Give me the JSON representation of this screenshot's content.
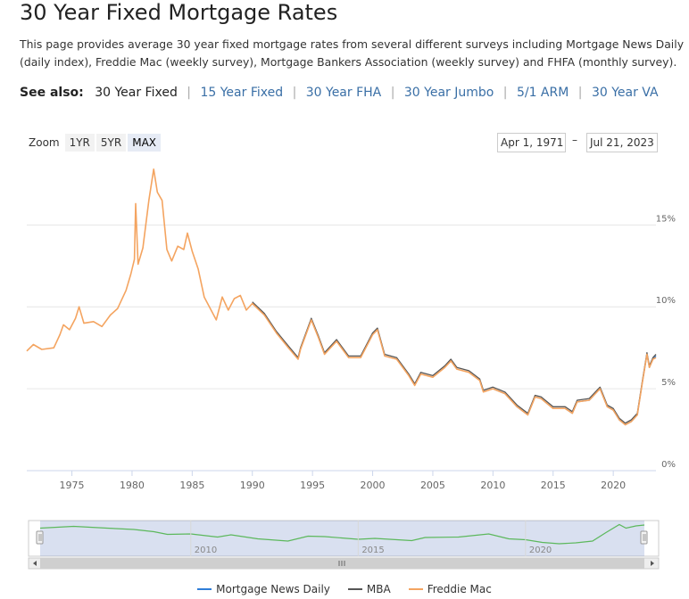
{
  "page": {
    "title": "30 Year Fixed Mortgage Rates",
    "description": "This page provides average 30 year fixed mortgage rates from several different surveys including Mortgage News Daily (daily index), Freddie Mac (weekly survey), Mortgage Bankers Association (weekly survey) and FHFA (monthly survey)."
  },
  "see_also": {
    "label": "See also:",
    "current": "30 Year Fixed",
    "links": [
      "15 Year Fixed",
      "30 Year FHA",
      "30 Year Jumbo",
      "5/1 ARM",
      "30 Year VA"
    ]
  },
  "zoom": {
    "label": "Zoom",
    "buttons": [
      "1YR",
      "5YR",
      "MAX"
    ],
    "active": "MAX"
  },
  "range": {
    "from": "Apr 1, 1971",
    "to": "Jul 21, 2023"
  },
  "colors": {
    "mnd": "#2f7ed8",
    "mba": "#555555",
    "freddie": "#f4a460",
    "navigator": "#5cb85c",
    "grid": "#e6e6e6"
  },
  "chart_data": {
    "type": "line",
    "x_unit": "year",
    "y_unit": "%",
    "xlim": [
      1971.25,
      2023.55
    ],
    "ylim": [
      0,
      18.5
    ],
    "x_ticks": [
      "1975",
      "1980",
      "1985",
      "1990",
      "1995",
      "2000",
      "2005",
      "2010",
      "2015",
      "2020"
    ],
    "y_ticks": [
      "0%",
      "5%",
      "10%",
      "15%"
    ],
    "grid": true,
    "legend_position": "bottom",
    "series": [
      {
        "name": "Mortgage News Daily",
        "points": [
          [
            2010.0,
            5.0
          ],
          [
            2011.0,
            4.7
          ],
          [
            2012.0,
            3.9
          ],
          [
            2012.9,
            3.4
          ],
          [
            2013.5,
            4.5
          ],
          [
            2014.0,
            4.4
          ],
          [
            2015.0,
            3.8
          ],
          [
            2016.0,
            3.8
          ],
          [
            2016.6,
            3.5
          ],
          [
            2017.0,
            4.2
          ],
          [
            2018.0,
            4.3
          ],
          [
            2018.9,
            5.0
          ],
          [
            2019.5,
            3.9
          ],
          [
            2020.0,
            3.7
          ],
          [
            2020.5,
            3.1
          ],
          [
            2021.0,
            2.8
          ],
          [
            2021.5,
            3.0
          ],
          [
            2022.0,
            3.4
          ],
          [
            2022.4,
            5.3
          ],
          [
            2022.8,
            7.1
          ],
          [
            2023.0,
            6.3
          ],
          [
            2023.3,
            6.8
          ],
          [
            2023.55,
            7.0
          ]
        ]
      },
      {
        "name": "MBA",
        "points": [
          [
            1990.0,
            10.3
          ],
          [
            1991.0,
            9.6
          ],
          [
            1992.0,
            8.5
          ],
          [
            1993.0,
            7.6
          ],
          [
            1993.8,
            6.9
          ],
          [
            1994.0,
            7.5
          ],
          [
            1994.9,
            9.3
          ],
          [
            1995.5,
            8.2
          ],
          [
            1996.0,
            7.2
          ],
          [
            1997.0,
            8.0
          ],
          [
            1998.0,
            7.0
          ],
          [
            1999.0,
            7.0
          ],
          [
            2000.0,
            8.4
          ],
          [
            2000.4,
            8.7
          ],
          [
            2001.0,
            7.1
          ],
          [
            2002.0,
            6.9
          ],
          [
            2003.0,
            5.9
          ],
          [
            2003.5,
            5.3
          ],
          [
            2004.0,
            6.0
          ],
          [
            2005.0,
            5.8
          ],
          [
            2006.0,
            6.4
          ],
          [
            2006.5,
            6.8
          ],
          [
            2007.0,
            6.3
          ],
          [
            2008.0,
            6.1
          ],
          [
            2008.9,
            5.6
          ],
          [
            2009.2,
            4.9
          ],
          [
            2010.0,
            5.1
          ],
          [
            2011.0,
            4.8
          ],
          [
            2012.0,
            4.0
          ],
          [
            2012.9,
            3.5
          ],
          [
            2013.5,
            4.6
          ],
          [
            2014.0,
            4.5
          ],
          [
            2015.0,
            3.9
          ],
          [
            2016.0,
            3.9
          ],
          [
            2016.6,
            3.6
          ],
          [
            2017.0,
            4.3
          ],
          [
            2018.0,
            4.4
          ],
          [
            2018.9,
            5.1
          ],
          [
            2019.5,
            4.0
          ],
          [
            2020.0,
            3.8
          ],
          [
            2020.5,
            3.2
          ],
          [
            2021.0,
            2.9
          ],
          [
            2021.5,
            3.1
          ],
          [
            2022.0,
            3.5
          ],
          [
            2022.4,
            5.4
          ],
          [
            2022.8,
            7.2
          ],
          [
            2023.0,
            6.4
          ],
          [
            2023.3,
            6.9
          ],
          [
            2023.55,
            7.1
          ]
        ]
      },
      {
        "name": "Freddie Mac",
        "points": [
          [
            1971.25,
            7.3
          ],
          [
            1971.8,
            7.7
          ],
          [
            1972.5,
            7.4
          ],
          [
            1973.5,
            7.5
          ],
          [
            1974.0,
            8.3
          ],
          [
            1974.3,
            8.9
          ],
          [
            1974.8,
            8.6
          ],
          [
            1975.3,
            9.3
          ],
          [
            1975.6,
            10.0
          ],
          [
            1976.0,
            9.0
          ],
          [
            1976.8,
            9.1
          ],
          [
            1977.5,
            8.8
          ],
          [
            1978.2,
            9.5
          ],
          [
            1978.8,
            9.9
          ],
          [
            1979.5,
            11.0
          ],
          [
            1979.9,
            12.0
          ],
          [
            1980.2,
            12.9
          ],
          [
            1980.3,
            16.3
          ],
          [
            1980.5,
            12.6
          ],
          [
            1980.9,
            13.6
          ],
          [
            1981.4,
            16.5
          ],
          [
            1981.8,
            18.4
          ],
          [
            1982.1,
            17.0
          ],
          [
            1982.5,
            16.5
          ],
          [
            1982.9,
            13.5
          ],
          [
            1983.3,
            12.8
          ],
          [
            1983.8,
            13.7
          ],
          [
            1984.3,
            13.5
          ],
          [
            1984.6,
            14.5
          ],
          [
            1985.0,
            13.4
          ],
          [
            1985.5,
            12.3
          ],
          [
            1986.0,
            10.6
          ],
          [
            1986.5,
            9.9
          ],
          [
            1987.0,
            9.2
          ],
          [
            1987.5,
            10.6
          ],
          [
            1988.0,
            9.8
          ],
          [
            1988.5,
            10.5
          ],
          [
            1989.0,
            10.7
          ],
          [
            1989.5,
            9.8
          ],
          [
            1990.0,
            10.2
          ],
          [
            1991.0,
            9.5
          ],
          [
            1992.0,
            8.4
          ],
          [
            1993.0,
            7.5
          ],
          [
            1993.8,
            6.8
          ],
          [
            1994.0,
            7.4
          ],
          [
            1994.9,
            9.2
          ],
          [
            1995.5,
            8.1
          ],
          [
            1996.0,
            7.1
          ],
          [
            1997.0,
            7.9
          ],
          [
            1998.0,
            6.9
          ],
          [
            1999.0,
            6.9
          ],
          [
            2000.0,
            8.3
          ],
          [
            2000.4,
            8.6
          ],
          [
            2001.0,
            7.0
          ],
          [
            2002.0,
            6.8
          ],
          [
            2003.0,
            5.8
          ],
          [
            2003.5,
            5.2
          ],
          [
            2004.0,
            5.9
          ],
          [
            2005.0,
            5.7
          ],
          [
            2006.0,
            6.3
          ],
          [
            2006.5,
            6.7
          ],
          [
            2007.0,
            6.2
          ],
          [
            2008.0,
            6.0
          ],
          [
            2008.9,
            5.5
          ],
          [
            2009.2,
            4.8
          ],
          [
            2010.0,
            5.0
          ],
          [
            2011.0,
            4.7
          ],
          [
            2012.0,
            3.9
          ],
          [
            2012.9,
            3.4
          ],
          [
            2013.5,
            4.5
          ],
          [
            2014.0,
            4.4
          ],
          [
            2015.0,
            3.8
          ],
          [
            2016.0,
            3.8
          ],
          [
            2016.6,
            3.5
          ],
          [
            2017.0,
            4.2
          ],
          [
            2018.0,
            4.3
          ],
          [
            2018.9,
            5.0
          ],
          [
            2019.5,
            3.9
          ],
          [
            2020.0,
            3.7
          ],
          [
            2020.5,
            3.1
          ],
          [
            2021.0,
            2.8
          ],
          [
            2021.5,
            3.0
          ],
          [
            2022.0,
            3.4
          ],
          [
            2022.4,
            5.3
          ],
          [
            2022.8,
            7.1
          ],
          [
            2023.0,
            6.3
          ],
          [
            2023.3,
            6.8
          ],
          [
            2023.55,
            6.9
          ]
        ]
      }
    ],
    "navigator": {
      "xlim": [
        2005.5,
        2023.55
      ],
      "x_ticks": [
        "2010",
        "2015",
        "2020"
      ],
      "points": [
        [
          2005.5,
          6.3
        ],
        [
          2006.5,
          6.7
        ],
        [
          2007.5,
          6.3
        ],
        [
          2008.3,
          6.0
        ],
        [
          2008.9,
          5.5
        ],
        [
          2009.3,
          4.9
        ],
        [
          2010.0,
          5.0
        ],
        [
          2010.8,
          4.3
        ],
        [
          2011.2,
          4.8
        ],
        [
          2012.0,
          3.9
        ],
        [
          2012.9,
          3.4
        ],
        [
          2013.5,
          4.5
        ],
        [
          2014.0,
          4.4
        ],
        [
          2015.0,
          3.8
        ],
        [
          2015.5,
          4.0
        ],
        [
          2016.6,
          3.5
        ],
        [
          2017.0,
          4.2
        ],
        [
          2018.0,
          4.3
        ],
        [
          2018.9,
          5.0
        ],
        [
          2019.5,
          3.9
        ],
        [
          2020.0,
          3.7
        ],
        [
          2020.5,
          3.1
        ],
        [
          2021.0,
          2.8
        ],
        [
          2021.5,
          3.0
        ],
        [
          2022.0,
          3.4
        ],
        [
          2022.4,
          5.3
        ],
        [
          2022.8,
          7.1
        ],
        [
          2023.0,
          6.3
        ],
        [
          2023.3,
          6.8
        ],
        [
          2023.55,
          7.0
        ]
      ]
    }
  }
}
